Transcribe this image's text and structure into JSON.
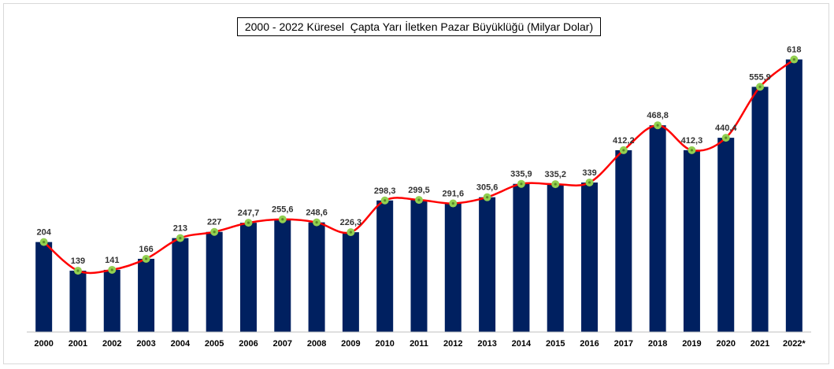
{
  "chart_data": {
    "type": "bar",
    "title": "2000 - 2022 Küresel  Çapta Yarı İletken Pazar Büyüklüğü (Milyar Dolar)",
    "categories": [
      "2000",
      "2001",
      "2002",
      "2003",
      "2004",
      "2005",
      "2006",
      "2007",
      "2008",
      "2009",
      "2010",
      "2011",
      "2012",
      "2013",
      "2014",
      "2015",
      "2016",
      "2017",
      "2018",
      "2019",
      "2020",
      "2021",
      "2022*"
    ],
    "values": [
      204,
      139,
      141,
      166,
      213,
      227,
      247.7,
      255.6,
      248.6,
      226.3,
      298.3,
      299.5,
      291.6,
      305.6,
      335.9,
      335.2,
      339,
      412.2,
      468.8,
      412.3,
      440.4,
      555.9,
      618
    ],
    "data_labels": [
      "204",
      "139",
      "141",
      "166",
      "213",
      "227",
      "247,7",
      "255,6",
      "248,6",
      "226,3",
      "298,3",
      "299,5",
      "291,6",
      "305,6",
      "335,9",
      "335,2",
      "339",
      "412,2",
      "468,8",
      "412,3",
      "440,4",
      "555,9",
      "618"
    ],
    "overlay_line": "smoothed line through bar tops with circular markers",
    "xlabel": "",
    "ylabel": "",
    "y_axis_visible": false,
    "grid": false,
    "legend": "none",
    "ylim": [
      0,
      660
    ],
    "colors": {
      "bar": "#002060",
      "line": "#ff0000",
      "marker_fill": "#92d050",
      "marker_center": "#5a8a2a",
      "axis": "#bfbfbf"
    }
  }
}
